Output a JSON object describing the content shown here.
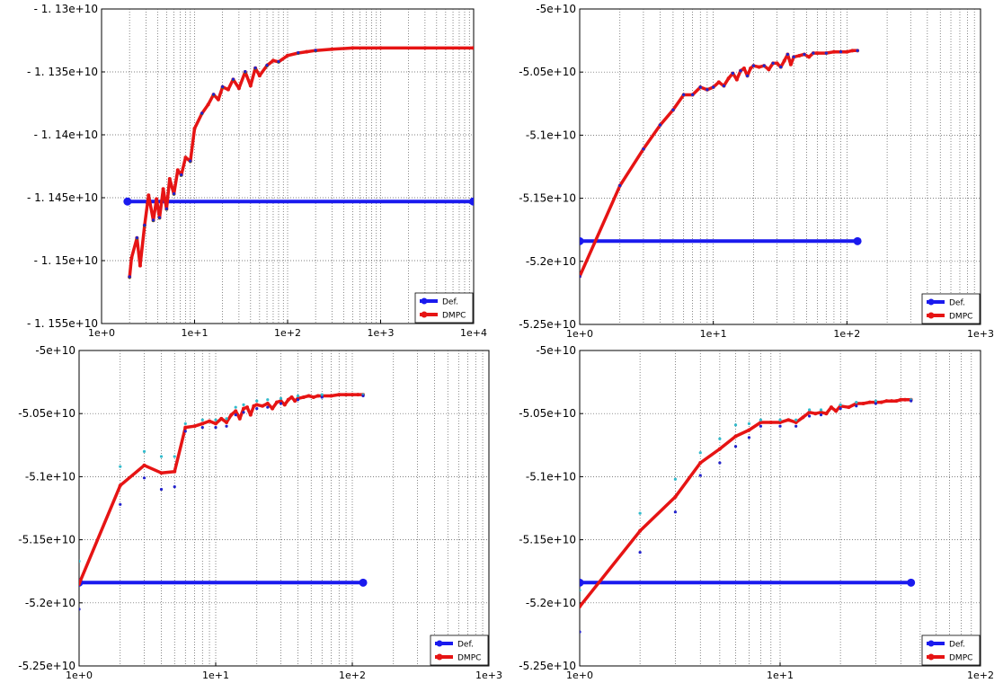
{
  "chart_data": [
    {
      "type": "line",
      "xscale": "log",
      "xlim": [
        1.0,
        10000
      ],
      "ylim": [
        -11550000000.0,
        -11300000000.0
      ],
      "grid": true,
      "legend": "bottom-right",
      "xticks": [
        1,
        10,
        100,
        1000,
        10000
      ],
      "xtick_labels": [
        "1e+0",
        "1e+1",
        "1e+2",
        "1e+3",
        "1e+4"
      ],
      "yticks": [
        -11300000000.0,
        -11350000000.0,
        -11400000000.0,
        -11450000000.0,
        -11500000000.0,
        -11550000000.0
      ],
      "ytick_labels": [
        "- 1. 13e+10",
        "- 1. 135e+10",
        "- 1. 14e+10",
        "- 1. 145e+10",
        "- 1. 15e+10",
        "- 1. 155e+10"
      ],
      "series": [
        {
          "name": "Def.",
          "color": "#1a1aee",
          "x": [
            1.9,
            9900
          ],
          "y": [
            -11453000000.0,
            -11453000000.0
          ]
        },
        {
          "name": "DMPC",
          "color": "#e61414",
          "x": [
            2,
            2.1,
            2.4,
            2.6,
            2.9,
            3.2,
            3.6,
            3.9,
            4.2,
            4.6,
            5,
            5.4,
            6,
            6.6,
            7.2,
            8,
            9,
            10,
            12,
            14,
            16,
            18,
            20,
            23,
            26,
            30,
            35,
            40,
            45,
            50,
            60,
            70,
            80,
            100,
            130,
            160,
            200,
            300,
            500,
            1000,
            3000,
            9900
          ],
          "y": [
            -11513000000.0,
            -11498000000.0,
            -11482000000.0,
            -11504000000.0,
            -11472000000.0,
            -11448000000.0,
            -11468000000.0,
            -11451000000.0,
            -11466000000.0,
            -11443000000.0,
            -11459000000.0,
            -11435000000.0,
            -11447000000.0,
            -11428000000.0,
            -11432000000.0,
            -11418000000.0,
            -11421000000.0,
            -11395000000.0,
            -11383000000.0,
            -11376000000.0,
            -11368000000.0,
            -11372000000.0,
            -11362000000.0,
            -11364000000.0,
            -11356000000.0,
            -11363000000.0,
            -11350000000.0,
            -11361000000.0,
            -11347000000.0,
            -11353000000.0,
            -11345000000.0,
            -11341000000.0,
            -11342000000.0,
            -11337000000.0,
            -11335000000.0,
            -11334000000.0,
            -11333000000.0,
            -11332000000.0,
            -11331000000.0,
            -11331000000.0,
            -11331000000.0,
            -11331000000.0
          ]
        },
        {
          "name": "",
          "color": "#2b7a2b",
          "marker": "dot",
          "offset": 1.7e-05,
          "x": [
            2,
            2.4,
            2.9,
            3.6,
            4.2,
            5,
            6,
            7.2,
            9,
            12,
            16,
            20,
            26,
            35,
            45,
            60,
            80,
            130,
            200
          ],
          "y": [
            -11513000000.0,
            -11482000000.0,
            -11472000000.0,
            -11468000000.0,
            -11466000000.0,
            -11459000000.0,
            -11447000000.0,
            -11432000000.0,
            -11421000000.0,
            -11383000000.0,
            -11368000000.0,
            -11362000000.0,
            -11356000000.0,
            -11350000000.0,
            -11347000000.0,
            -11345000000.0,
            -11342000000.0,
            -11335000000.0,
            -11333000000.0
          ]
        },
        {
          "name": "",
          "color": "#2222cc",
          "marker": "dot",
          "offset": -2.2e-05,
          "x": [
            2,
            2.4,
            2.9,
            3.6,
            4.2,
            5,
            6,
            7.2,
            9,
            12,
            16,
            20,
            26,
            35,
            45,
            60,
            80,
            130,
            200
          ],
          "y": [
            -11513000000.0,
            -11482000000.0,
            -11472000000.0,
            -11468000000.0,
            -11466000000.0,
            -11459000000.0,
            -11447000000.0,
            -11432000000.0,
            -11421000000.0,
            -11383000000.0,
            -11368000000.0,
            -11362000000.0,
            -11356000000.0,
            -11350000000.0,
            -11347000000.0,
            -11345000000.0,
            -11342000000.0,
            -11335000000.0,
            -11333000000.0
          ]
        }
      ]
    },
    {
      "type": "line",
      "xscale": "log",
      "xlim": [
        1,
        1000
      ],
      "ylim": [
        -52500000000.0,
        -50000000000.0
      ],
      "grid": true,
      "legend": "bottom-right",
      "xticks": [
        1,
        10,
        100,
        1000
      ],
      "xtick_labels": [
        "1e+0",
        "1e+1",
        "1e+2",
        "1e+3"
      ],
      "yticks": [
        -50000000000.0,
        -50500000000.0,
        -51000000000.0,
        -51500000000.0,
        -52000000000.0,
        -52500000000.0
      ],
      "ytick_labels": [
        "-5e+10",
        "-5.05e+10",
        "-5.1e+10",
        "-5.15e+10",
        "-5.2e+10",
        "-5.25e+10"
      ],
      "series": [
        {
          "name": "Def.",
          "color": "#1a1aee",
          "x": [
            1,
            120
          ],
          "y": [
            -51840000000.0,
            -51840000000.0
          ]
        },
        {
          "name": "DMPC",
          "color": "#e61414",
          "x": [
            1,
            2,
            3,
            4,
            5,
            6,
            7,
            8,
            9,
            10,
            11,
            12,
            13,
            14,
            15,
            16,
            17,
            18,
            19,
            20,
            22,
            24,
            26,
            28,
            30,
            32,
            34,
            36,
            38,
            40,
            44,
            48,
            52,
            56,
            60,
            70,
            80,
            90,
            100,
            110,
            120
          ],
          "y": [
            -52120000000.0,
            -51400000000.0,
            -51110000000.0,
            -50920000000.0,
            -50800000000.0,
            -50680000000.0,
            -50680000000.0,
            -50620000000.0,
            -50640000000.0,
            -50620000000.0,
            -50580000000.0,
            -50610000000.0,
            -50550000000.0,
            -50510000000.0,
            -50560000000.0,
            -50490000000.0,
            -50470000000.0,
            -50530000000.0,
            -50470000000.0,
            -50450000000.0,
            -50460000000.0,
            -50450000000.0,
            -50480000000.0,
            -50430000000.0,
            -50430000000.0,
            -50460000000.0,
            -50410000000.0,
            -50360000000.0,
            -50440000000.0,
            -50380000000.0,
            -50370000000.0,
            -50360000000.0,
            -50380000000.0,
            -50350000000.0,
            -50350000000.0,
            -50350000000.0,
            -50340000000.0,
            -50340000000.0,
            -50340000000.0,
            -50330000000.0,
            -50330000000.0
          ]
        },
        {
          "name": "",
          "color": "#33bbcc",
          "marker": "dot",
          "offset": 9e-06,
          "x": [
            1,
            2,
            3,
            4,
            5,
            6,
            7,
            8,
            9,
            10,
            12,
            14,
            16,
            18,
            20,
            24,
            28,
            32,
            36,
            40,
            48,
            56,
            70,
            90,
            120
          ],
          "y": [
            -52120000000.0,
            -51400000000.0,
            -51110000000.0,
            -50920000000.0,
            -50800000000.0,
            -50680000000.0,
            -50680000000.0,
            -50620000000.0,
            -50640000000.0,
            -50620000000.0,
            -50610000000.0,
            -50510000000.0,
            -50490000000.0,
            -50530000000.0,
            -50450000000.0,
            -50450000000.0,
            -50430000000.0,
            -50460000000.0,
            -50360000000.0,
            -50380000000.0,
            -50360000000.0,
            -50350000000.0,
            -50350000000.0,
            -50340000000.0,
            -50330000000.0
          ]
        },
        {
          "name": "",
          "color": "#2222cc",
          "marker": "dot",
          "offset": -1.1e-05,
          "x": [
            1,
            2,
            3,
            4,
            5,
            6,
            7,
            8,
            9,
            10,
            12,
            14,
            16,
            18,
            20,
            24,
            28,
            32,
            36,
            40,
            48,
            56,
            70,
            90,
            120
          ],
          "y": [
            -52120000000.0,
            -51400000000.0,
            -51110000000.0,
            -50920000000.0,
            -50800000000.0,
            -50680000000.0,
            -50680000000.0,
            -50620000000.0,
            -50640000000.0,
            -50620000000.0,
            -50610000000.0,
            -50510000000.0,
            -50490000000.0,
            -50530000000.0,
            -50450000000.0,
            -50450000000.0,
            -50430000000.0,
            -50460000000.0,
            -50360000000.0,
            -50380000000.0,
            -50360000000.0,
            -50350000000.0,
            -50350000000.0,
            -50340000000.0,
            -50330000000.0
          ]
        }
      ]
    },
    {
      "type": "line",
      "xscale": "log",
      "xlim": [
        1,
        1000
      ],
      "ylim": [
        -52500000000.0,
        -50000000000.0
      ],
      "grid": true,
      "legend": "bottom-right",
      "xticks": [
        1,
        10,
        100,
        1000
      ],
      "xtick_labels": [
        "1e+0",
        "1e+1",
        "1e+2",
        "1e+3"
      ],
      "yticks": [
        -50000000000.0,
        -50500000000.0,
        -51000000000.0,
        -51500000000.0,
        -52000000000.0,
        -52500000000.0
      ],
      "ytick_labels": [
        "-5e+10",
        "-5.05e+10",
        "-5.1e+10",
        "-5.15e+10",
        "-5.2e+10",
        "-5.25e+10"
      ],
      "series": [
        {
          "name": "Def.",
          "color": "#1a1aee",
          "x": [
            1,
            120
          ],
          "y": [
            -51840000000.0,
            -51840000000.0
          ]
        },
        {
          "name": "DMPC",
          "color": "#e61414",
          "x": [
            1,
            2,
            3,
            4,
            5,
            6,
            7,
            8,
            9,
            10,
            11,
            12,
            13,
            14,
            15,
            16,
            17,
            18,
            19,
            20,
            22,
            24,
            26,
            28,
            30,
            32,
            34,
            36,
            38,
            40,
            44,
            48,
            52,
            56,
            60,
            70,
            80,
            90,
            100,
            110,
            120
          ],
          "y": [
            -51850000000.0,
            -51070000000.0,
            -50910000000.0,
            -50970000000.0,
            -50960000000.0,
            -50610000000.0,
            -50600000000.0,
            -50580000000.0,
            -50560000000.0,
            -50580000000.0,
            -50540000000.0,
            -50570000000.0,
            -50510000000.0,
            -50480000000.0,
            -50540000000.0,
            -50460000000.0,
            -50450000000.0,
            -50510000000.0,
            -50440000000.0,
            -50430000000.0,
            -50440000000.0,
            -50420000000.0,
            -50460000000.0,
            -50410000000.0,
            -50400000000.0,
            -50430000000.0,
            -50390000000.0,
            -50370000000.0,
            -50400000000.0,
            -50380000000.0,
            -50370000000.0,
            -50360000000.0,
            -50370000000.0,
            -50360000000.0,
            -50360000000.0,
            -50360000000.0,
            -50350000000.0,
            -50350000000.0,
            -50350000000.0,
            -50350000000.0,
            -50350000000.0
          ]
        },
        {
          "name": "",
          "color": "#33bbcc",
          "marker": "dot",
          "x": [
            1,
            2,
            3,
            4,
            5,
            6,
            8,
            10,
            12,
            14,
            16,
            20,
            24,
            30,
            40,
            60,
            120
          ],
          "y": [
            -51670000000.0,
            -50920000000.0,
            -50800000000.0,
            -50840000000.0,
            -50840000000.0,
            -50580000000.0,
            -50550000000.0,
            -50550000000.0,
            -50540000000.0,
            -50450000000.0,
            -50430000000.0,
            -50400000000.0,
            -50390000000.0,
            -50380000000.0,
            -50360000000.0,
            -50350000000.0,
            -50350000000.0
          ]
        },
        {
          "name": "",
          "color": "#2222cc",
          "marker": "dot",
          "x": [
            1,
            2,
            3,
            4,
            5,
            6,
            8,
            10,
            12,
            14,
            16,
            20,
            24,
            30,
            40,
            60,
            120
          ],
          "y": [
            -52050000000.0,
            -51220000000.0,
            -51010000000.0,
            -51100000000.0,
            -51080000000.0,
            -50640000000.0,
            -50610000000.0,
            -50610000000.0,
            -50600000000.0,
            -50510000000.0,
            -50490000000.0,
            -50460000000.0,
            -50450000000.0,
            -50420000000.0,
            -50390000000.0,
            -50370000000.0,
            -50360000000.0
          ]
        }
      ]
    },
    {
      "type": "line",
      "xscale": "log",
      "xlim": [
        1,
        100
      ],
      "ylim": [
        -52500000000.0,
        -50000000000.0
      ],
      "grid": true,
      "legend": "bottom-right",
      "xticks": [
        1,
        10,
        100
      ],
      "xtick_labels": [
        "1e+0",
        "1e+1",
        "1e+2"
      ],
      "yticks": [
        -50000000000.0,
        -50500000000.0,
        -51000000000.0,
        -51500000000.0,
        -52000000000.0,
        -52500000000.0
      ],
      "ytick_labels": [
        "-5e+10",
        "-5.05e+10",
        "-5.1e+10",
        "-5.15e+10",
        "-5.2e+10",
        "-5.25e+10"
      ],
      "series": [
        {
          "name": "Def.",
          "color": "#1a1aee",
          "x": [
            1,
            45
          ],
          "y": [
            -51840000000.0,
            -51840000000.0
          ]
        },
        {
          "name": "DMPC",
          "color": "#e61414",
          "x": [
            1,
            2,
            3,
            4,
            5,
            6,
            7,
            8,
            9,
            10,
            11,
            12,
            13,
            14,
            15,
            16,
            17,
            18,
            19,
            20,
            22,
            24,
            26,
            28,
            30,
            32,
            34,
            36,
            38,
            40,
            42,
            45
          ],
          "y": [
            -52030000000.0,
            -51430000000.0,
            -51160000000.0,
            -50890000000.0,
            -50780000000.0,
            -50680000000.0,
            -50630000000.0,
            -50570000000.0,
            -50570000000.0,
            -50570000000.0,
            -50550000000.0,
            -50570000000.0,
            -50530000000.0,
            -50490000000.0,
            -50500000000.0,
            -50490000000.0,
            -50500000000.0,
            -50450000000.0,
            -50480000000.0,
            -50440000000.0,
            -50450000000.0,
            -50420000000.0,
            -50420000000.0,
            -50410000000.0,
            -50410000000.0,
            -50410000000.0,
            -50400000000.0,
            -50400000000.0,
            -50400000000.0,
            -50390000000.0,
            -50390000000.0,
            -50390000000.0
          ]
        },
        {
          "name": "",
          "color": "#33bbcc",
          "marker": "dot",
          "x": [
            1,
            2,
            3,
            4,
            5,
            6,
            7,
            8,
            10,
            12,
            14,
            16,
            20,
            24,
            30,
            45
          ],
          "y": [
            -51900000000.0,
            -51290000000.0,
            -51020000000.0,
            -50810000000.0,
            -50700000000.0,
            -50590000000.0,
            -50580000000.0,
            -50550000000.0,
            -50550000000.0,
            -50550000000.0,
            -50470000000.0,
            -50470000000.0,
            -50430000000.0,
            -50410000000.0,
            -50400000000.0,
            -50390000000.0
          ]
        },
        {
          "name": "",
          "color": "#2222cc",
          "marker": "dot",
          "x": [
            1,
            2,
            3,
            4,
            5,
            6,
            7,
            8,
            10,
            12,
            14,
            16,
            20,
            24,
            30,
            45
          ],
          "y": [
            -52230000000.0,
            -51600000000.0,
            -51280000000.0,
            -50990000000.0,
            -50890000000.0,
            -50760000000.0,
            -50690000000.0,
            -50600000000.0,
            -50600000000.0,
            -50600000000.0,
            -50520000000.0,
            -50510000000.0,
            -50460000000.0,
            -50440000000.0,
            -50420000000.0,
            -50400000000.0
          ]
        }
      ]
    }
  ]
}
